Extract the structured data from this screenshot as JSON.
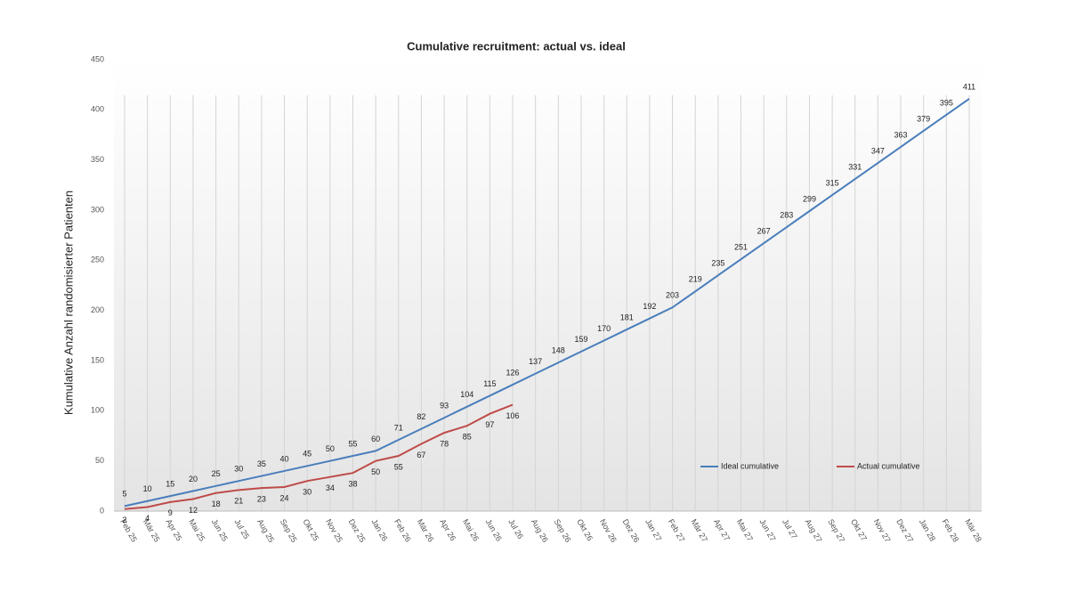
{
  "chart_data": {
    "type": "line",
    "title": "Cumulative recruitment: actual vs. ideal",
    "y_label": "Kumulative Anzahl randomisierter Patienten",
    "categories": [
      "Feb 25",
      "Mär 25",
      "Apr 25",
      "Mai 25",
      "Jun 25",
      "Jul 25",
      "Aug 25",
      "Sep 25",
      "Okt 25",
      "Nov 25",
      "Dez 25",
      "Jan 26",
      "Feb 26",
      "Mär 26",
      "Apr 26",
      "Mai 26",
      "Jun 26",
      "Jul 26",
      "Aug 26",
      "Sep 26",
      "Okt 26",
      "Nov 26",
      "Dez 26",
      "Jan 27",
      "Feb 27",
      "Mär 27",
      "Apr 27",
      "Mai 27",
      "Jun 27",
      "Jul 27",
      "Aug 27",
      "Sep 27",
      "Okt 27",
      "Nov 27",
      "Dez 27",
      "Jan 28",
      "Feb 28",
      "Mär 28"
    ],
    "series": [
      {
        "name": "Ideal cumulative",
        "color": "#4a7ebb",
        "label_side": "above",
        "values": [
          5,
          10,
          15,
          20,
          25,
          30,
          35,
          40,
          45,
          50,
          55,
          60,
          71,
          82,
          93,
          104,
          115,
          126,
          137,
          148,
          159,
          170,
          181,
          192,
          203,
          219,
          235,
          251,
          267,
          283,
          299,
          315,
          331,
          347,
          363,
          379,
          395,
          411
        ]
      },
      {
        "name": "Actual cumulative",
        "color": "#be4b48",
        "label_side": "below",
        "values": [
          2,
          4,
          9,
          12,
          18,
          21,
          23,
          24,
          30,
          34,
          38,
          50,
          55,
          67,
          78,
          85,
          97,
          106,
          null,
          null,
          null,
          null,
          null,
          null,
          null,
          null,
          null,
          null,
          null,
          null,
          null,
          null,
          null,
          null,
          null,
          null,
          null,
          null
        ]
      }
    ],
    "ylim": [
      0,
      450
    ],
    "yticks": [
      0,
      50,
      100,
      150,
      200,
      250,
      300,
      350,
      400,
      450
    ],
    "grid": true
  }
}
